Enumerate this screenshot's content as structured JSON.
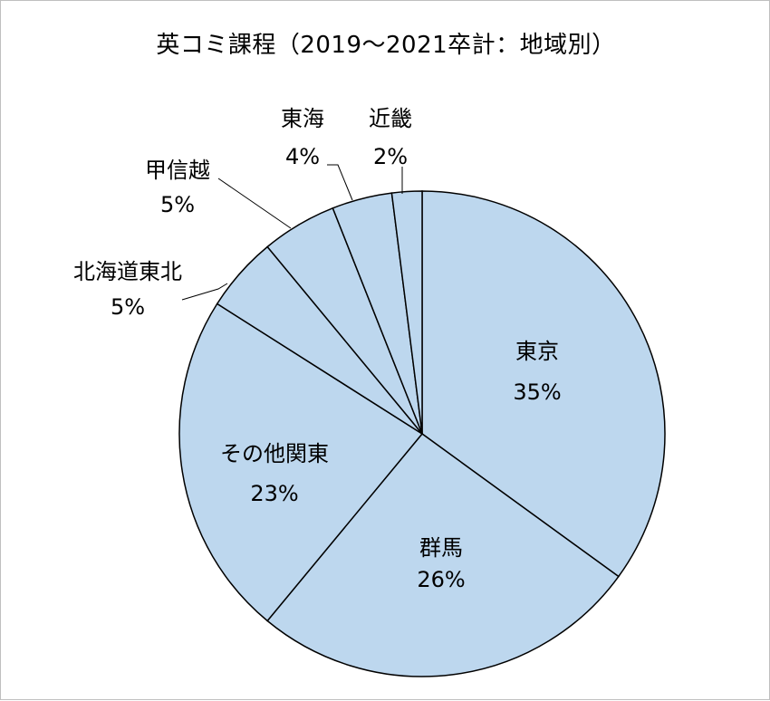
{
  "chart_data": {
    "type": "pie",
    "title": "英コミ課程（2019～2021卒計：地域別）",
    "slices": [
      {
        "label": "東京",
        "value": 35,
        "pct_label": "35%"
      },
      {
        "label": "群馬",
        "value": 26,
        "pct_label": "26%"
      },
      {
        "label": "その他関東",
        "value": 23,
        "pct_label": "23%"
      },
      {
        "label": "北海道東北",
        "value": 5,
        "pct_label": "5%"
      },
      {
        "label": "甲信越",
        "value": 5,
        "pct_label": "5%"
      },
      {
        "label": "東海",
        "value": 4,
        "pct_label": "4%"
      },
      {
        "label": "近畿",
        "value": 2,
        "pct_label": "2%"
      }
    ],
    "slice_color": "#bdd7ee",
    "edge_color": "#000000"
  }
}
